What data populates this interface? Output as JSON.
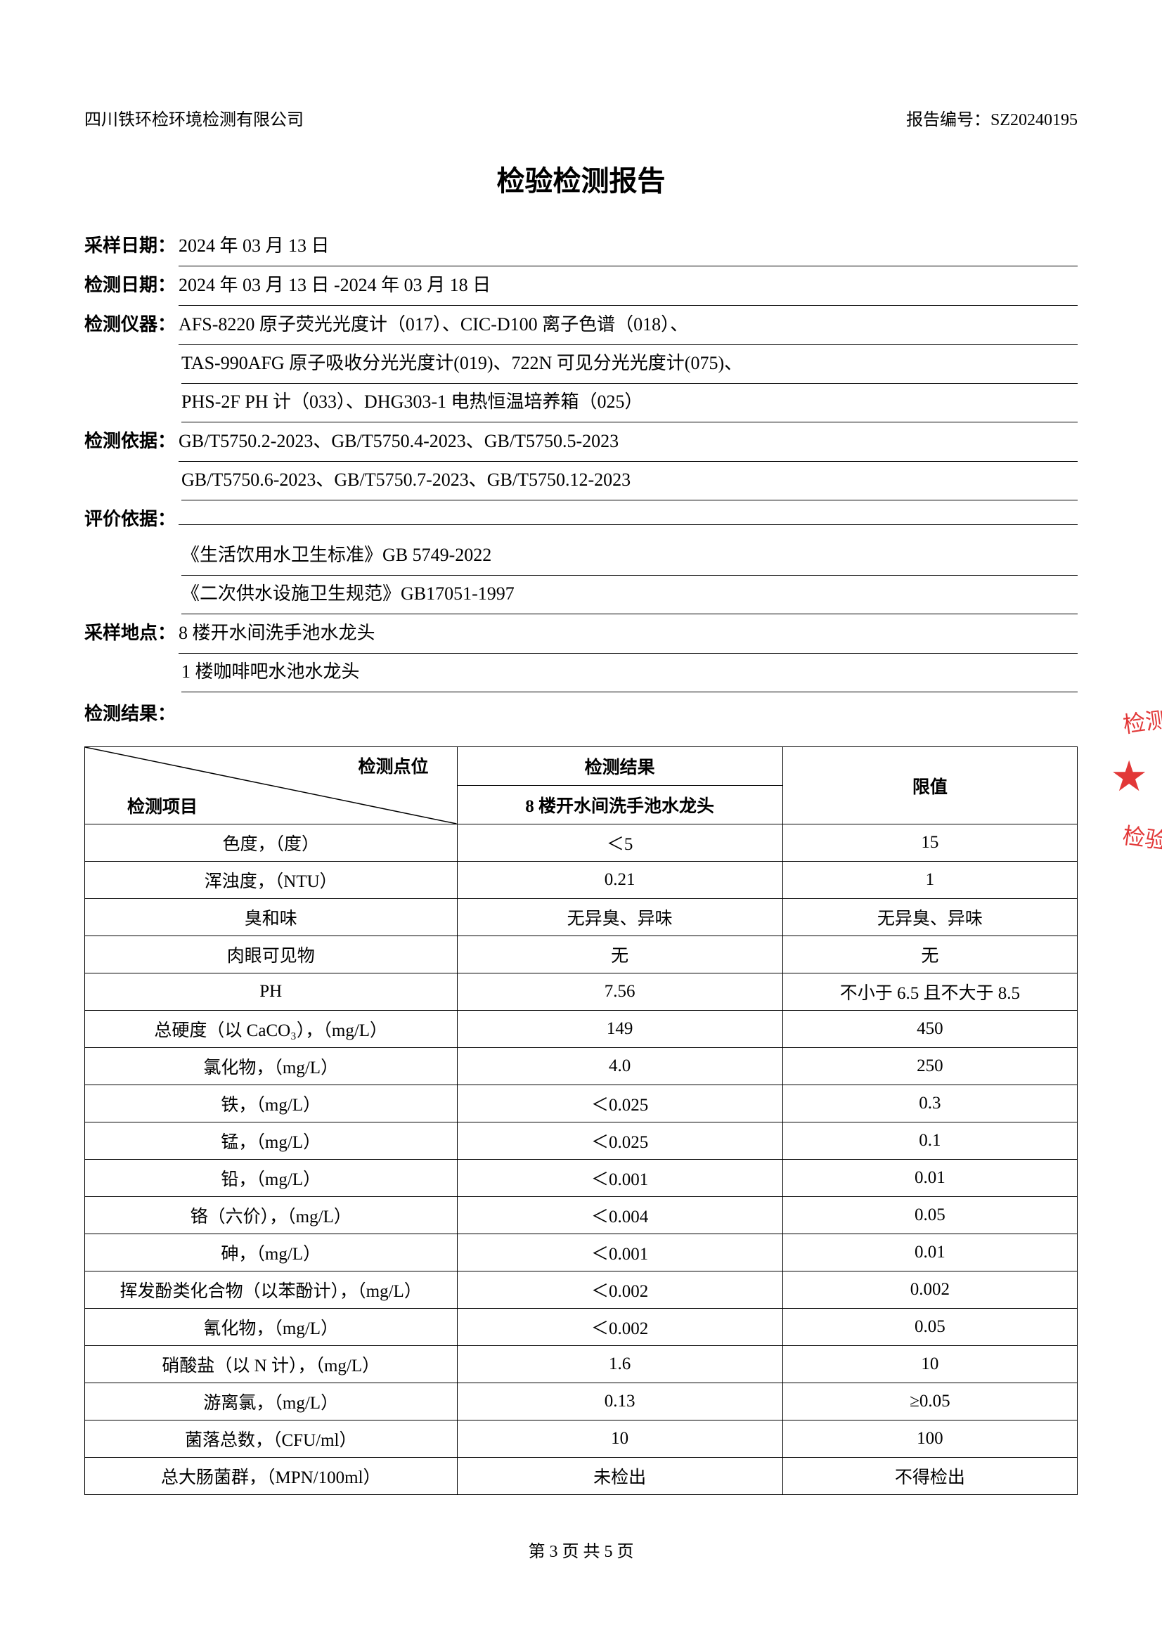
{
  "header": {
    "company": "四川铁环检环境检测有限公司",
    "report_no_label": "报告编号：",
    "report_no": "SZ20240195"
  },
  "title": "检验检测报告",
  "info": {
    "sample_date_label": "采样日期：",
    "sample_date": "2024 年 03 月 13 日",
    "test_date_label": "检测日期：",
    "test_date": "2024 年 03 月 13 日 -2024 年 03 月 18 日",
    "instrument_label": "检测仪器：",
    "instrument_1": "AFS-8220 原子荧光光度计（017）、CIC-D100 离子色谱（018）、",
    "instrument_2": "TAS-990AFG 原子吸收分光光度计(019)、722N 可见分光光度计(075)、",
    "instrument_3": "PHS-2F PH 计（033）、DHG303-1 电热恒温培养箱（025）",
    "basis_label": "检测依据：",
    "basis_1": "GB/T5750.2-2023、GB/T5750.4-2023、GB/T5750.5-2023",
    "basis_2": "GB/T5750.6-2023、GB/T5750.7-2023、GB/T5750.12-2023",
    "eval_label": "评价依据：",
    "eval_1": "《生活饮用水卫生标准》GB 5749-2022",
    "eval_2": "《二次供水设施卫生规范》GB17051-1997",
    "location_label": "采样地点：",
    "location_1": "8 楼开水间洗手池水龙头",
    "location_2": "1 楼咖啡吧水池水龙头",
    "results_label": "检测结果："
  },
  "table": {
    "diag_top": "检测点位",
    "diag_bottom": "检测项目",
    "result_header": "检测结果",
    "result_subheader": "8 楼开水间洗手池水龙头",
    "limit_header": "限值",
    "rows": [
      {
        "item": "色度，（度）",
        "result": "＜5",
        "limit": "15"
      },
      {
        "item": "浑浊度，（NTU）",
        "result": "0.21",
        "limit": "1"
      },
      {
        "item": "臭和味",
        "result": "无异臭、异味",
        "limit": "无异臭、异味"
      },
      {
        "item": "肉眼可见物",
        "result": "无",
        "limit": "无"
      },
      {
        "item": "PH",
        "result": "7.56",
        "limit": "不小于 6.5 且不大于 8.5"
      },
      {
        "item": "总硬度（以 CaCO₃），（mg/L）",
        "result": "149",
        "limit": "450"
      },
      {
        "item": "氯化物，（mg/L）",
        "result": "4.0",
        "limit": "250"
      },
      {
        "item": "铁，（mg/L）",
        "result": "＜0.025",
        "limit": "0.3"
      },
      {
        "item": "锰，（mg/L）",
        "result": "＜0.025",
        "limit": "0.1"
      },
      {
        "item": "铅，（mg/L）",
        "result": "＜0.001",
        "limit": "0.01"
      },
      {
        "item": "铬（六价），（mg/L）",
        "result": "＜0.004",
        "limit": "0.05"
      },
      {
        "item": "砷，（mg/L）",
        "result": "＜0.001",
        "limit": "0.01"
      },
      {
        "item": "挥发酚类化合物（以苯酚计），（mg/L）",
        "result": "＜0.002",
        "limit": "0.002"
      },
      {
        "item": "氰化物，（mg/L）",
        "result": "＜0.002",
        "limit": "0.05"
      },
      {
        "item": "硝酸盐（以 N 计），（mg/L）",
        "result": "1.6",
        "limit": "10"
      },
      {
        "item": "游离氯，（mg/L）",
        "result": "0.13",
        "limit": "≥0.05"
      },
      {
        "item": "菌落总数，（CFU/ml）",
        "result": "10",
        "limit": "100"
      },
      {
        "item": "总大肠菌群，（MPN/100ml）",
        "result": "未检出",
        "limit": "不得检出"
      }
    ]
  },
  "footer": {
    "page": "第 3 页 共 5 页"
  },
  "stamp": {
    "text1": "检测有",
    "text2": "检验检",
    "star": "★"
  },
  "colors": {
    "text": "#000000",
    "stamp": "#e23838",
    "background": "#ffffff",
    "border": "#000000"
  }
}
